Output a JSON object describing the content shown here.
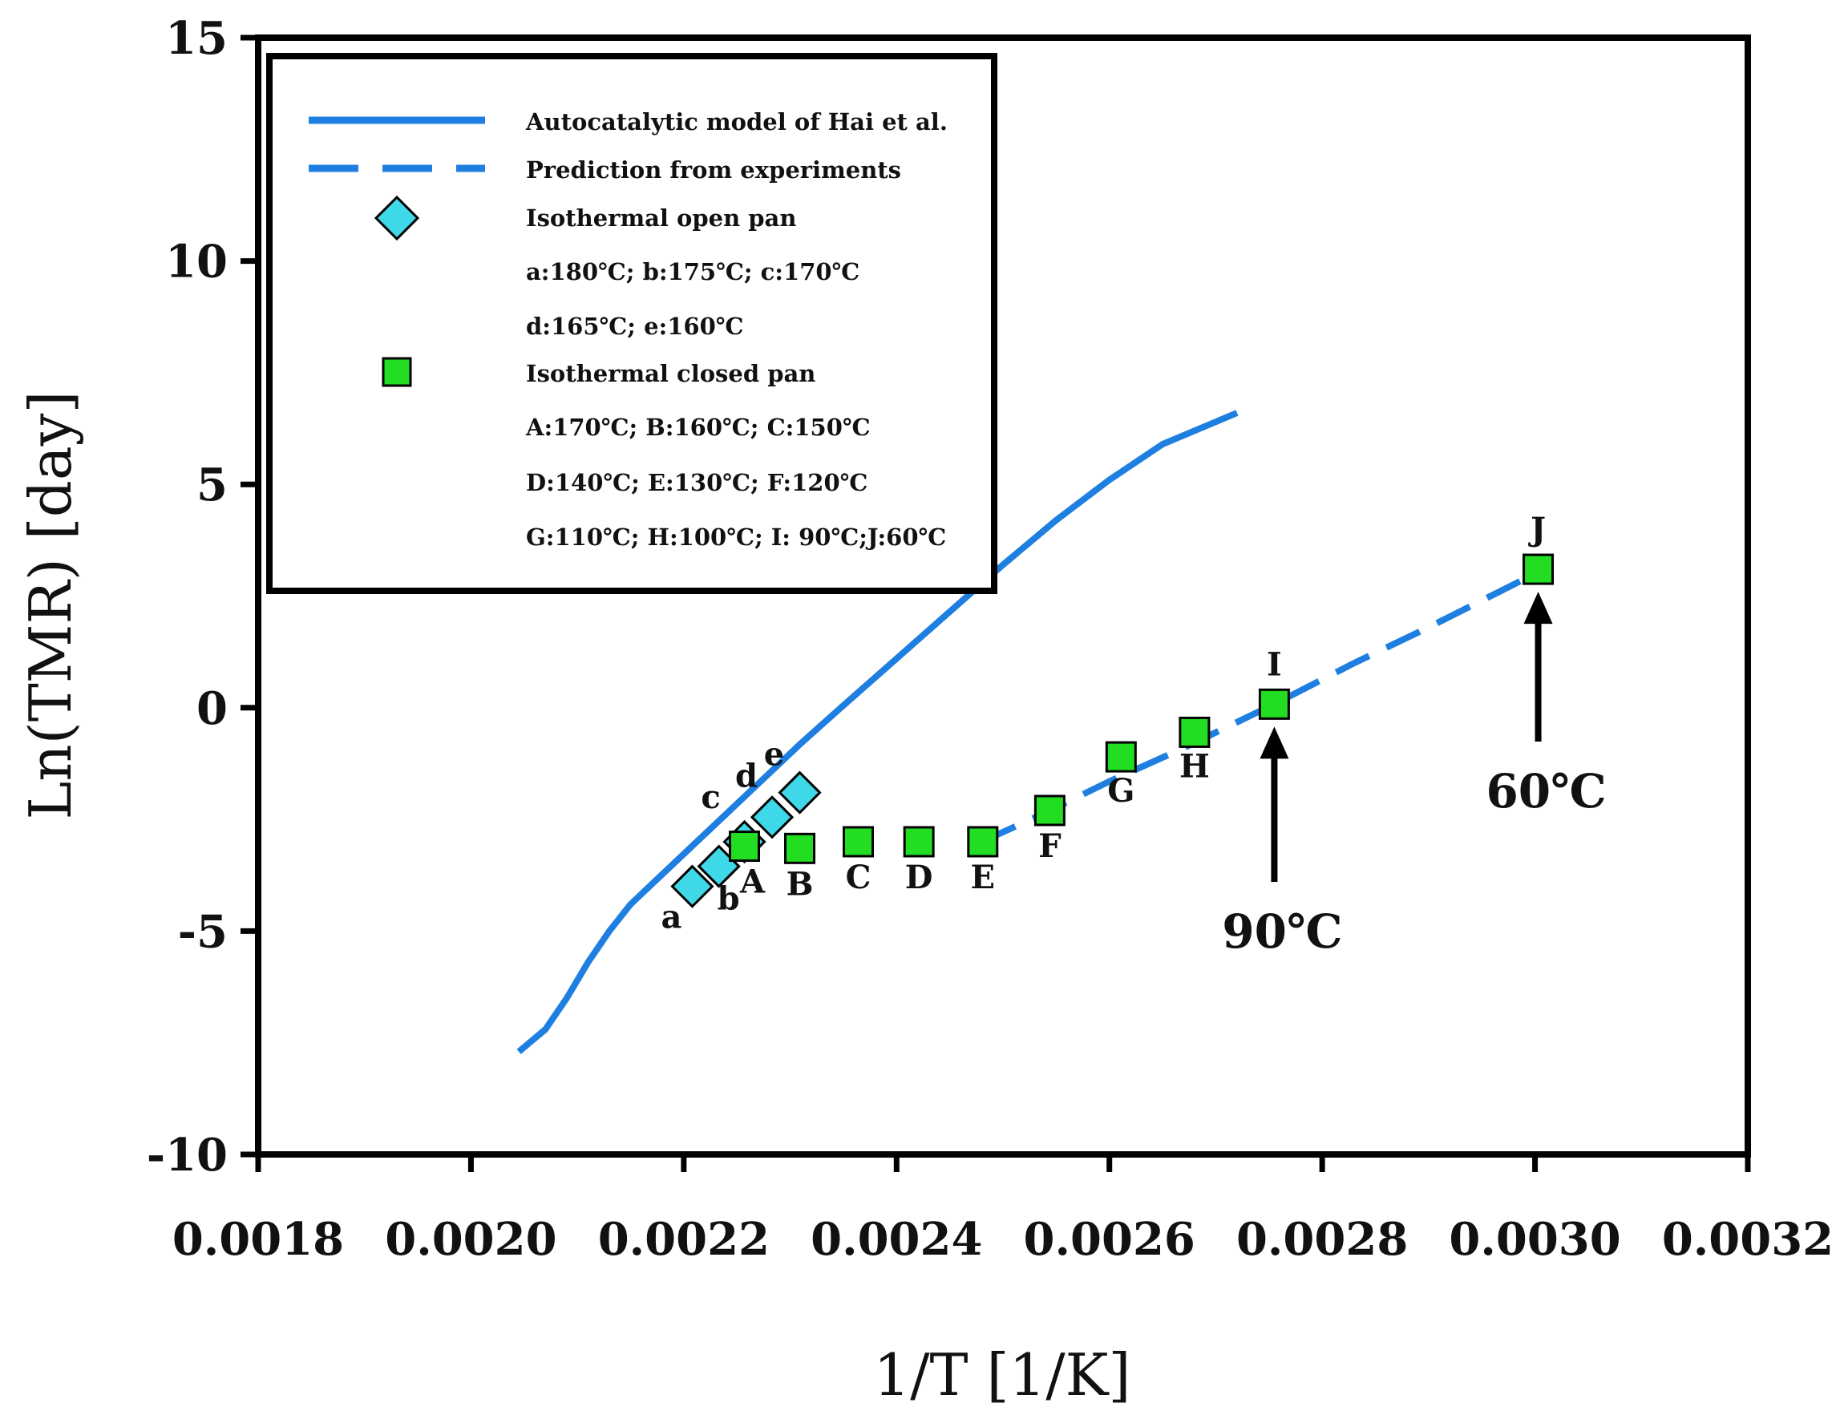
{
  "chart_data": {
    "type": "scatter",
    "xlabel": "1/T [1/K]",
    "ylabel": "Ln(TMR) [day]",
    "xlim": [
      0.0018,
      0.0032
    ],
    "ylim": [
      -10,
      15
    ],
    "x_ticks": [
      "0.0018",
      "0.0020",
      "0.0022",
      "0.0024",
      "0.0026",
      "0.0028",
      "0.0030",
      "0.0032"
    ],
    "x_tick_values": [
      0.0018,
      0.002,
      0.0022,
      0.0024,
      0.0026,
      0.0028,
      0.003,
      0.0032
    ],
    "y_ticks": [
      "-10",
      "-5",
      "0",
      "5",
      "10",
      "15"
    ],
    "y_tick_values": [
      -10,
      -5,
      0,
      5,
      10,
      15
    ],
    "grid": false,
    "legend_position": "top-left",
    "legend": {
      "model": "Autocatalytic model of Hai et al.",
      "prediction": "Prediction from experiments",
      "open_pan": "Isothermal open pan",
      "open_pan_note_1": "a:180℃; b:175℃; c:170℃",
      "open_pan_note_2": "d:165℃; e:160℃",
      "closed_pan": "Isothermal closed pan",
      "closed_pan_note_1": "A:170℃; B:160℃; C:150℃",
      "closed_pan_note_2": "D:140℃; E:130℃; F:120℃",
      "closed_pan_note_3": "G:110℃; H:100℃; I:  90℃;J:60℃"
    },
    "colors": {
      "line": "#1f7fe0",
      "open_pan_fill": "#3ed8e8",
      "closed_pan_fill": "#22dd22",
      "axis": "#000000"
    },
    "series": [
      {
        "name": "Autocatalytic model of Hai et al.",
        "style": "solid",
        "x": [
          0.002045,
          0.00207,
          0.00209,
          0.00211,
          0.00213,
          0.00215,
          0.00217,
          0.00219,
          0.00221,
          0.00223,
          0.00225,
          0.00227,
          0.00229,
          0.00231,
          0.00235,
          0.0024,
          0.00245,
          0.0025,
          0.00255,
          0.0026,
          0.00265,
          0.00272
        ],
        "y": [
          -7.7,
          -7.2,
          -6.5,
          -5.7,
          -5.0,
          -4.4,
          -3.95,
          -3.5,
          -3.05,
          -2.6,
          -2.15,
          -1.7,
          -1.25,
          -0.8,
          0.05,
          1.1,
          2.15,
          3.2,
          4.2,
          5.1,
          5.9,
          6.6
        ]
      },
      {
        "name": "Prediction from experiments",
        "style": "dashed",
        "x": [
          0.00248,
          0.00254,
          0.0026,
          0.00267,
          0.002755,
          0.00283,
          0.0029,
          0.003
        ],
        "y": [
          -3.0,
          -2.35,
          -1.65,
          -0.9,
          0.08,
          1.0,
          1.8,
          3.0
        ]
      },
      {
        "name": "Isothermal open pan",
        "marker": "diamond",
        "points": [
          {
            "label": "a",
            "x": 0.002208,
            "y": -4.0
          },
          {
            "label": "b",
            "x": 0.002233,
            "y": -3.55
          },
          {
            "label": "c",
            "x": 0.002257,
            "y": -3.0
          },
          {
            "label": "d",
            "x": 0.002283,
            "y": -2.45
          },
          {
            "label": "e",
            "x": 0.002309,
            "y": -1.9
          }
        ]
      },
      {
        "name": "Isothermal closed pan",
        "marker": "square",
        "points": [
          {
            "label": "A",
            "x": 0.002257,
            "y": -3.1
          },
          {
            "label": "B",
            "x": 0.002309,
            "y": -3.15
          },
          {
            "label": "C",
            "x": 0.002364,
            "y": -3.0
          },
          {
            "label": "D",
            "x": 0.002421,
            "y": -3.0
          },
          {
            "label": "E",
            "x": 0.002481,
            "y": -3.0
          },
          {
            "label": "F",
            "x": 0.002544,
            "y": -2.3
          },
          {
            "label": "G",
            "x": 0.002611,
            "y": -1.1
          },
          {
            "label": "H",
            "x": 0.00268,
            "y": -0.55
          },
          {
            "label": "I",
            "x": 0.002755,
            "y": 0.08
          },
          {
            "label": "J",
            "x": 0.003003,
            "y": 3.1
          }
        ]
      }
    ],
    "annotations": [
      {
        "text": "90℃",
        "x": 0.002755,
        "y": 0.08
      },
      {
        "text": "60℃",
        "x": 0.003003,
        "y": 3.1
      }
    ]
  }
}
